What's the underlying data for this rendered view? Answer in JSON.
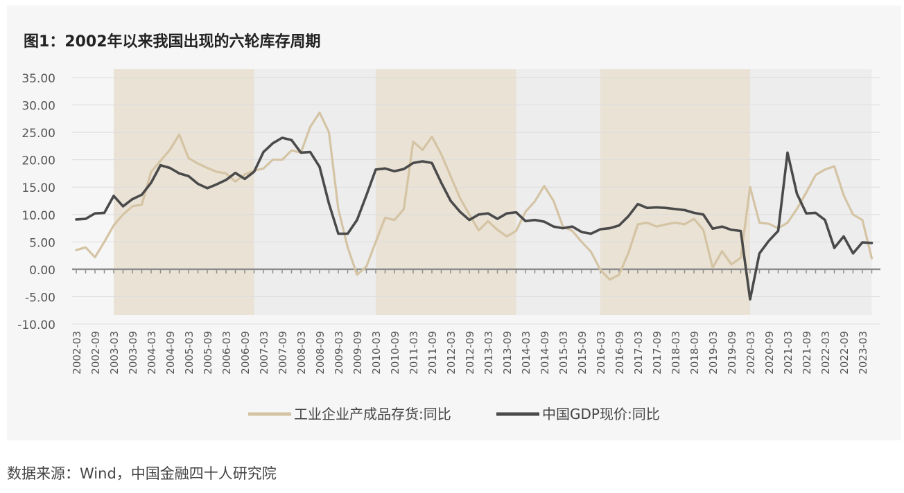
{
  "title": "图1：2002年以来我国出现的六轮库存周期",
  "source": "数据来源：Wind，中国金融四十人研究院",
  "colors": {
    "inventory": "#d4c4a4",
    "gdp": "#4a4a4a",
    "band_shade": "#e9e2d5",
    "band_gray": "#ededed",
    "axis": "#8c8c8c",
    "grid": "#dcdcdc",
    "text": "#555555"
  },
  "chart_data": {
    "type": "line",
    "title": "图1：2002年以来我国出现的六轮库存周期",
    "ylim": [
      -10,
      35
    ],
    "yticks": [
      "35.00",
      "30.00",
      "25.00",
      "20.00",
      "15.00",
      "10.00",
      "5.00",
      "0.00",
      "-5.00",
      "-10.00"
    ],
    "ytick_values": [
      35,
      30,
      25,
      20,
      15,
      10,
      5,
      0,
      -5,
      -10
    ],
    "xtick_labels": [
      "2002-03",
      "2002-09",
      "2003-03",
      "2003-09",
      "2004-03",
      "2004-09",
      "2005-03",
      "2005-09",
      "2006-03",
      "2006-09",
      "2007-03",
      "2007-09",
      "2008-03",
      "2008-09",
      "2009-03",
      "2009-09",
      "2010-03",
      "2010-09",
      "2011-03",
      "2011-09",
      "2012-03",
      "2012-09",
      "2013-03",
      "2013-09",
      "2014-03",
      "2014-09",
      "2015-03",
      "2015-09",
      "2016-03",
      "2016-09",
      "2017-03",
      "2017-09",
      "2018-03",
      "2018-09",
      "2019-03",
      "2019-09",
      "2020-03",
      "2020-09",
      "2021-03",
      "2021-09",
      "2022-03",
      "2022-09",
      "2023-03"
    ],
    "grid": "horizontal",
    "legend_position": "bottom",
    "shaded_periods": [
      {
        "from": "2003-03",
        "to": "2006-12",
        "tone": "tan"
      },
      {
        "from": "2006-12",
        "to": "2010-03",
        "tone": "gray"
      },
      {
        "from": "2010-03",
        "to": "2013-12",
        "tone": "tan"
      },
      {
        "from": "2013-12",
        "to": "2016-03",
        "tone": "gray"
      },
      {
        "from": "2016-03",
        "to": "2020-03",
        "tone": "tan"
      },
      {
        "from": "2020-03",
        "to": "2023-06",
        "tone": "gray"
      }
    ],
    "series": [
      {
        "name": "工业企业产成品存货:同比",
        "color": "#d4c4a4",
        "values": [
          3.5,
          4.0,
          2.2,
          5.0,
          8.0,
          10.0,
          11.5,
          11.8,
          17.8,
          19.8,
          21.8,
          24.6,
          20.3,
          19.3,
          18.5,
          17.8,
          17.5,
          16.0,
          17.3,
          18.0,
          18.4,
          20.0,
          20.0,
          21.7,
          21.3,
          26.0,
          28.6,
          25.0,
          11.0,
          4.0,
          -1.0,
          0.5,
          5.0,
          9.4,
          9.0,
          11.0,
          23.3,
          21.8,
          24.2,
          21.0,
          17.0,
          13.0,
          10.0,
          7.1,
          8.8,
          7.2,
          6.0,
          7.0,
          10.5,
          12.4,
          15.2,
          12.5,
          7.8,
          7.0,
          5.0,
          3.2,
          -0.1,
          -1.9,
          -1.0,
          3.0,
          8.2,
          8.5,
          7.8,
          8.2,
          8.5,
          8.2,
          9.2,
          7.2,
          0.3,
          3.3,
          0.9,
          2.1,
          15.0,
          8.5,
          8.3,
          7.5,
          8.5,
          11.0,
          14.0,
          17.2,
          18.2,
          18.8,
          13.5,
          10.0,
          9.0,
          2.0
        ]
      },
      {
        "name": "中国GDP现价:同比",
        "color": "#4a4a4a",
        "values": [
          9.1,
          9.2,
          10.2,
          10.3,
          13.4,
          11.5,
          12.8,
          13.6,
          15.8,
          19.0,
          18.5,
          17.5,
          17.0,
          15.6,
          14.8,
          15.5,
          16.3,
          17.6,
          16.5,
          17.8,
          21.4,
          23.0,
          24.0,
          23.6,
          21.3,
          21.4,
          18.7,
          12.0,
          6.5,
          6.5,
          9.0,
          13.5,
          18.2,
          18.4,
          17.9,
          18.3,
          19.4,
          19.7,
          19.4,
          15.8,
          12.5,
          10.5,
          9.0,
          10.0,
          10.2,
          9.2,
          10.2,
          10.4,
          8.8,
          9.0,
          8.7,
          7.8,
          7.5,
          7.8,
          6.8,
          6.5,
          7.3,
          7.5,
          8.0,
          9.7,
          11.9,
          11.2,
          11.3,
          11.2,
          11.0,
          10.8,
          10.3,
          10.0,
          7.4,
          7.8,
          7.2,
          7.0,
          -5.5,
          2.9,
          5.2,
          7.0,
          21.3,
          13.8,
          10.2,
          10.3,
          9.0,
          3.9,
          6.0,
          2.9,
          4.9,
          4.8
        ]
      }
    ]
  },
  "legend": {
    "items": [
      {
        "label": "工业企业产成品存货:同比",
        "color": "#d4c4a4"
      },
      {
        "label": "中国GDP现价:同比",
        "color": "#4a4a4a"
      }
    ]
  }
}
